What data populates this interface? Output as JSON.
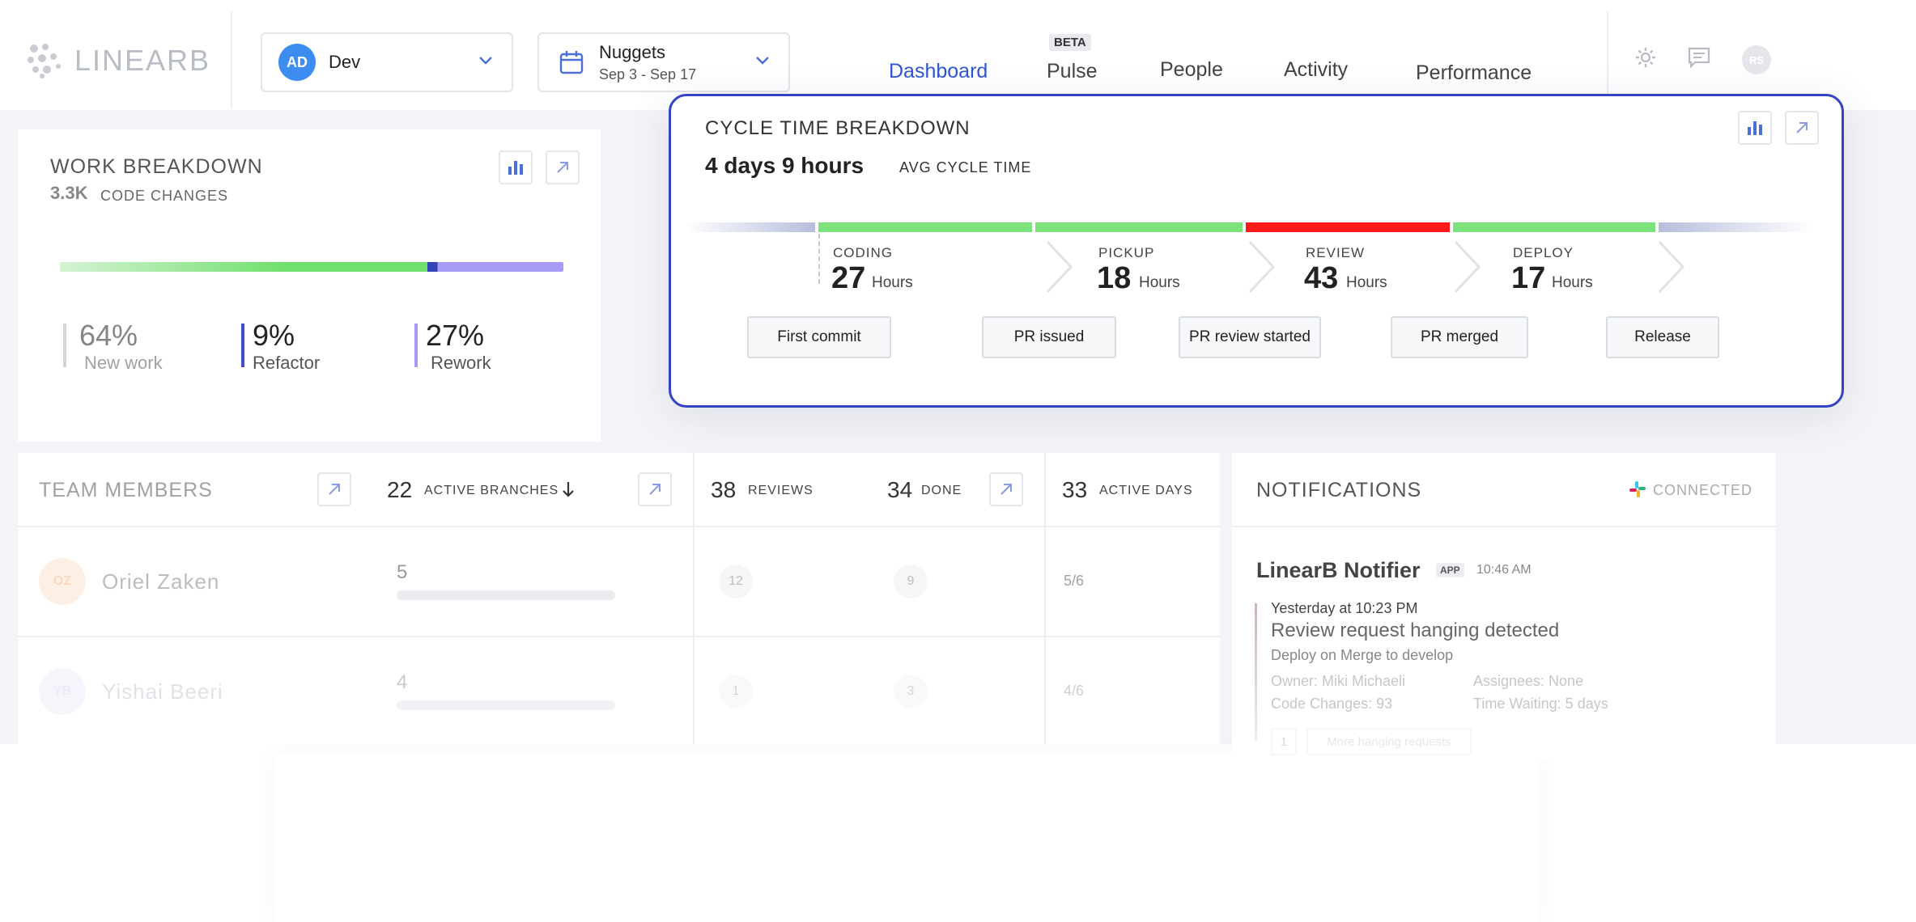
{
  "brand": {
    "logo_text": "LINEARB"
  },
  "team_select": {
    "initials": "AD",
    "label": "Dev"
  },
  "iteration_select": {
    "title": "Nuggets",
    "dates": "Sep 3 - Sep 17"
  },
  "nav": {
    "dashboard": "Dashboard",
    "pulse": "Pulse",
    "pulse_badge": "BETA",
    "people": "People",
    "activity": "Activity",
    "performance": "Performance"
  },
  "user": {
    "initials": "RS"
  },
  "work_breakdown": {
    "title": "WORK BREAKDOWN",
    "count": "3.3K",
    "count_label": "CODE CHANGES",
    "stats": [
      {
        "value": "64%",
        "label": "New work",
        "color": "#d0d3da"
      },
      {
        "value": "9%",
        "label": "Refactor",
        "color": "#3f4fc9"
      },
      {
        "value": "27%",
        "label": "Rework",
        "color": "#a69cf5"
      }
    ]
  },
  "cycle_time": {
    "title": "CYCLE TIME BREAKDOWN",
    "total": "4 days 9 hours",
    "total_label": "AVG CYCLE TIME",
    "phases": [
      {
        "label": "CODING",
        "value": "27",
        "unit": "Hours",
        "color": "#7ee27c"
      },
      {
        "label": "PICKUP",
        "value": "18",
        "unit": "Hours",
        "color": "#7ee27c"
      },
      {
        "label": "REVIEW",
        "value": "43",
        "unit": "Hours",
        "color": "#ff1a1a"
      },
      {
        "label": "DEPLOY",
        "value": "17",
        "unit": "Hours",
        "color": "#7ee27c"
      }
    ],
    "events": [
      "First commit",
      "PR issued",
      "PR review started",
      "PR merged",
      "Release"
    ]
  },
  "team_members": {
    "title": "TEAM MEMBERS",
    "active_branches": "22",
    "active_branches_label": "ACTIVE BRANCHES",
    "reviews": "38",
    "reviews_label": "REVIEWS",
    "done": "34",
    "done_label": "DONE",
    "active_days": "33",
    "active_days_label": "ACTIVE DAYS",
    "members": [
      {
        "initials": "OZ",
        "name": "Oriel Zaken",
        "branches": "5",
        "reviews": "12",
        "done": "9",
        "days": "5/6"
      },
      {
        "initials": "YB",
        "name": "Yishai Beeri",
        "branches": "4",
        "reviews": "1",
        "done": "3",
        "days": "4/6"
      }
    ]
  },
  "notifications": {
    "title": "NOTIFICATIONS",
    "status": "CONNECTED",
    "sender": "LinearB Notifier",
    "sender_badge": "APP",
    "time": "10:46 AM",
    "item_time": "Yesterday at 10:23 PM",
    "item_title": "Review request hanging detected",
    "item_subtitle": "Deploy on Merge to develop",
    "owner": "Owner: Miki Michaeli",
    "assignees": "Assignees: None",
    "code_changes": "Code Changes: 93",
    "time_waiting": "Time Waiting: 5 days",
    "button_count": "1",
    "button_label": "More hanging requests"
  },
  "colors": {
    "accent": "#2f55d4",
    "card_border": "#3443c2",
    "green": "#7ee27c",
    "red": "#ff1a1a",
    "purple": "#a69cf5"
  }
}
